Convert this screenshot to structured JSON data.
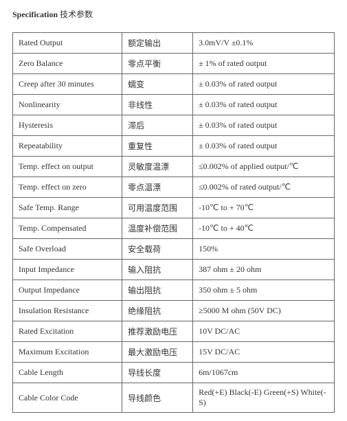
{
  "title": {
    "bold": "Specification",
    "rest": " 技术参数"
  },
  "table": {
    "rows": [
      {
        "en": "Rated Output",
        "cn": "额定输出",
        "val": "3.0mV/V ±0.1%"
      },
      {
        "en": "Zero Balance",
        "cn": "零点平衡",
        "val": "± 1% of rated output"
      },
      {
        "en": "Creep after 30 minutes",
        "cn": "蠕变",
        "val": "± 0.03% of rated output"
      },
      {
        "en": "Nonlinearity",
        "cn": "非线性",
        "val": "± 0.03% of rated output"
      },
      {
        "en": "Hysteresis",
        "cn": "滞后",
        "val": "± 0.03% of rated output"
      },
      {
        "en": "Repeatability",
        "cn": "重复性",
        "val": "± 0.03% of rated output"
      },
      {
        "en": "Temp. effect on output",
        "cn": "灵敏度温漂",
        "val": "≤0.002% of applied output/℃"
      },
      {
        "en": "Temp. effect on zero",
        "cn": "零点温漂",
        "val": "≤0.002% of rated output/℃"
      },
      {
        "en": "Safe Temp. Range",
        "cn": "可用温度范围",
        "val": "-10℃ to + 70℃"
      },
      {
        "en": "Temp. Compensated",
        "cn": "温度补偿范围",
        "val": "-10℃ to + 40℃"
      },
      {
        "en": "Safe Overload",
        "cn": "安全载荷",
        "val": "150%"
      },
      {
        "en": "Input Impedance",
        "cn": "输入阻抗",
        "val": "387 ohm ± 20 ohm"
      },
      {
        "en": "Output Impedance",
        "cn": "输出阻抗",
        "val": "350 ohm ± 5 ohm"
      },
      {
        "en": "Insulation Resistance",
        "cn": "绝缘阻抗",
        "val": "≥5000 M ohm (50V DC)"
      },
      {
        "en": "Rated Excitation",
        "cn": "推荐激励电压",
        "val": "10V DC/AC"
      },
      {
        "en": "Maximum Excitation",
        "cn": "最大激励电压",
        "val": "15V DC/AC"
      },
      {
        "en": "Cable Length",
        "cn": "导线长度",
        "val": "6m/1067cm"
      },
      {
        "en": "Cable Color Code",
        "cn": "导线颜色",
        "val": "Red(+E) Black(-E) Green(+S) White(-S)"
      }
    ]
  }
}
